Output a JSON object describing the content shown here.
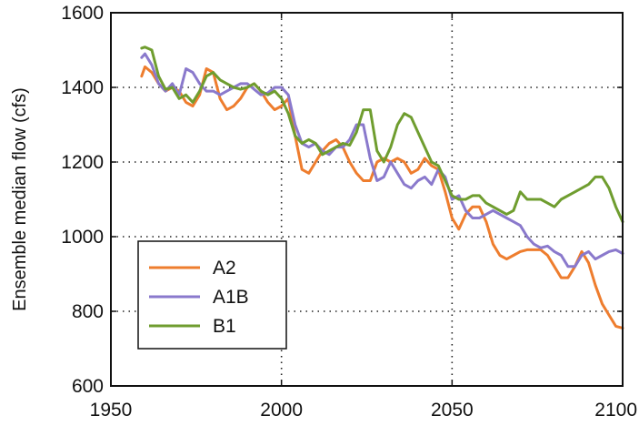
{
  "chart_data": {
    "type": "line",
    "title": "",
    "xlabel": "",
    "ylabel": "Ensemble median flow (cfs)",
    "xlim": [
      1950,
      2100
    ],
    "ylim": [
      600,
      1600
    ],
    "xticks": [
      1950,
      2000,
      2050,
      2100
    ],
    "yticks": [
      600,
      800,
      1000,
      1200,
      1400,
      1600
    ],
    "grid": true,
    "legend_position": "lower-left",
    "series": [
      {
        "name": "A2",
        "color": "#ee7d2e",
        "x": [
          1959,
          1960,
          1962,
          1964,
          1966,
          1968,
          1970,
          1972,
          1974,
          1976,
          1978,
          1980,
          1982,
          1984,
          1986,
          1988,
          1990,
          1992,
          1994,
          1996,
          1998,
          2000,
          2002,
          2004,
          2006,
          2008,
          2010,
          2012,
          2014,
          2016,
          2018,
          2020,
          2022,
          2024,
          2026,
          2028,
          2030,
          2032,
          2034,
          2036,
          2038,
          2040,
          2042,
          2044,
          2046,
          2048,
          2050,
          2052,
          2054,
          2056,
          2058,
          2060,
          2062,
          2064,
          2066,
          2068,
          2070,
          2072,
          2074,
          2076,
          2078,
          2080,
          2082,
          2084,
          2086,
          2088,
          2090,
          2092,
          2094,
          2096,
          2098,
          2100
        ],
        "y": [
          1430,
          1455,
          1440,
          1410,
          1390,
          1400,
          1390,
          1360,
          1350,
          1380,
          1450,
          1440,
          1370,
          1340,
          1350,
          1370,
          1400,
          1410,
          1390,
          1360,
          1340,
          1350,
          1370,
          1270,
          1180,
          1170,
          1200,
          1230,
          1250,
          1260,
          1240,
          1200,
          1170,
          1150,
          1150,
          1200,
          1210,
          1200,
          1210,
          1200,
          1170,
          1180,
          1210,
          1190,
          1180,
          1120,
          1050,
          1020,
          1060,
          1080,
          1080,
          1040,
          980,
          950,
          940,
          950,
          960,
          965,
          965,
          965,
          950,
          920,
          890,
          890,
          920,
          960,
          930,
          870,
          820,
          790,
          760,
          755
        ]
      },
      {
        "name": "A1B",
        "color": "#8a79cc",
        "x": [
          1959,
          1960,
          1962,
          1964,
          1966,
          1968,
          1970,
          1972,
          1974,
          1976,
          1978,
          1980,
          1982,
          1984,
          1986,
          1988,
          1990,
          1992,
          1994,
          1996,
          1998,
          2000,
          2002,
          2004,
          2006,
          2008,
          2010,
          2012,
          2014,
          2016,
          2018,
          2020,
          2022,
          2024,
          2026,
          2028,
          2030,
          2032,
          2034,
          2036,
          2038,
          2040,
          2042,
          2044,
          2046,
          2048,
          2050,
          2052,
          2054,
          2056,
          2058,
          2060,
          2062,
          2064,
          2066,
          2068,
          2070,
          2072,
          2074,
          2076,
          2078,
          2080,
          2082,
          2084,
          2086,
          2088,
          2090,
          2092,
          2094,
          2096,
          2098,
          2100
        ],
        "y": [
          1480,
          1490,
          1460,
          1410,
          1390,
          1410,
          1380,
          1450,
          1440,
          1410,
          1390,
          1390,
          1380,
          1390,
          1400,
          1410,
          1410,
          1395,
          1380,
          1385,
          1400,
          1400,
          1380,
          1300,
          1250,
          1240,
          1250,
          1230,
          1220,
          1240,
          1240,
          1260,
          1300,
          1300,
          1210,
          1150,
          1160,
          1200,
          1170,
          1140,
          1130,
          1150,
          1160,
          1140,
          1180,
          1160,
          1100,
          1110,
          1070,
          1050,
          1050,
          1060,
          1070,
          1060,
          1050,
          1040,
          1030,
          1000,
          980,
          970,
          975,
          960,
          950,
          920,
          920,
          950,
          960,
          940,
          950,
          960,
          965,
          955
        ]
      },
      {
        "name": "B1",
        "color": "#6f9d2f",
        "x": [
          1959,
          1960,
          1962,
          1964,
          1966,
          1968,
          1970,
          1972,
          1974,
          1976,
          1978,
          1980,
          1982,
          1984,
          1986,
          1988,
          1990,
          1992,
          1994,
          1996,
          1998,
          2000,
          2002,
          2004,
          2006,
          2008,
          2010,
          2012,
          2014,
          2016,
          2018,
          2020,
          2022,
          2024,
          2026,
          2028,
          2030,
          2032,
          2034,
          2036,
          2038,
          2040,
          2042,
          2044,
          2046,
          2048,
          2050,
          2052,
          2054,
          2056,
          2058,
          2060,
          2062,
          2064,
          2066,
          2068,
          2070,
          2072,
          2074,
          2076,
          2078,
          2080,
          2082,
          2084,
          2086,
          2088,
          2090,
          2092,
          2094,
          2096,
          2098,
          2100
        ],
        "y": [
          1505,
          1508,
          1500,
          1430,
          1395,
          1400,
          1370,
          1380,
          1360,
          1390,
          1430,
          1440,
          1420,
          1410,
          1400,
          1395,
          1400,
          1410,
          1390,
          1380,
          1390,
          1370,
          1330,
          1270,
          1250,
          1260,
          1250,
          1220,
          1230,
          1240,
          1250,
          1245,
          1280,
          1340,
          1340,
          1230,
          1200,
          1240,
          1300,
          1330,
          1320,
          1280,
          1240,
          1200,
          1190,
          1150,
          1110,
          1100,
          1100,
          1110,
          1110,
          1090,
          1080,
          1070,
          1060,
          1070,
          1120,
          1100,
          1100,
          1100,
          1090,
          1080,
          1100,
          1110,
          1120,
          1130,
          1140,
          1160,
          1160,
          1130,
          1080,
          1040
        ]
      }
    ]
  }
}
